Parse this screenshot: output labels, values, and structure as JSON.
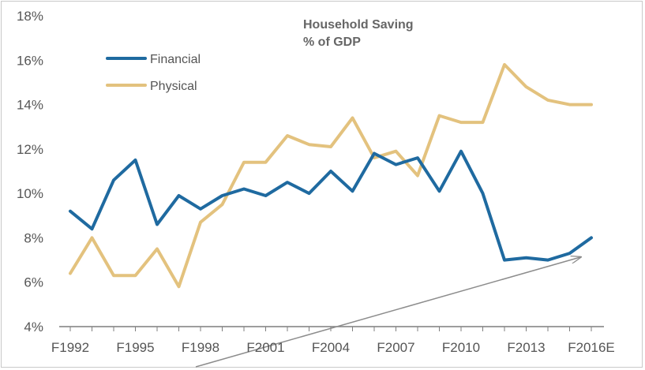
{
  "chart_data": {
    "type": "line",
    "title": "Household Saving",
    "subtitle": "% of GDP",
    "x": [
      "F1992",
      "F1993",
      "F1994",
      "F1995",
      "F1996",
      "F1997",
      "F1998",
      "F1999",
      "F2000",
      "F2001",
      "F2002",
      "F2003",
      "F2004",
      "F2005",
      "F2006",
      "F2007",
      "F2008",
      "F2009",
      "F2010",
      "F2011",
      "F2012",
      "F2013",
      "F2014",
      "F2015",
      "F2016E"
    ],
    "x_tick_labels": [
      "F1992",
      "F1995",
      "F1998",
      "F2001",
      "F2004",
      "F2007",
      "F2010",
      "F2013",
      "F2016E"
    ],
    "y_tick_labels": [
      "4%",
      "6%",
      "8%",
      "10%",
      "12%",
      "14%",
      "16%",
      "18%"
    ],
    "ylim": [
      4,
      18
    ],
    "y_unit": "%",
    "grid": false,
    "legend_position": "top-left",
    "series": [
      {
        "name": "Financial",
        "color": "#1f6aa0",
        "values": [
          9.2,
          8.4,
          10.6,
          11.5,
          8.6,
          9.9,
          9.3,
          9.9,
          10.2,
          9.9,
          10.5,
          10.0,
          11.0,
          10.1,
          11.8,
          11.3,
          11.6,
          10.1,
          11.9,
          10.0,
          7.0,
          7.1,
          7.0,
          7.3,
          8.0
        ]
      },
      {
        "name": "Physical",
        "color": "#e3c27e",
        "values": [
          6.4,
          8.0,
          6.3,
          6.3,
          7.5,
          5.8,
          8.7,
          9.5,
          11.4,
          11.4,
          12.6,
          12.2,
          12.1,
          13.4,
          11.6,
          11.9,
          10.8,
          13.5,
          13.2,
          13.2,
          15.8,
          14.8,
          14.2,
          14.0,
          14.0
        ]
      }
    ],
    "annotation_arrow_color": "#8c8c8c"
  }
}
